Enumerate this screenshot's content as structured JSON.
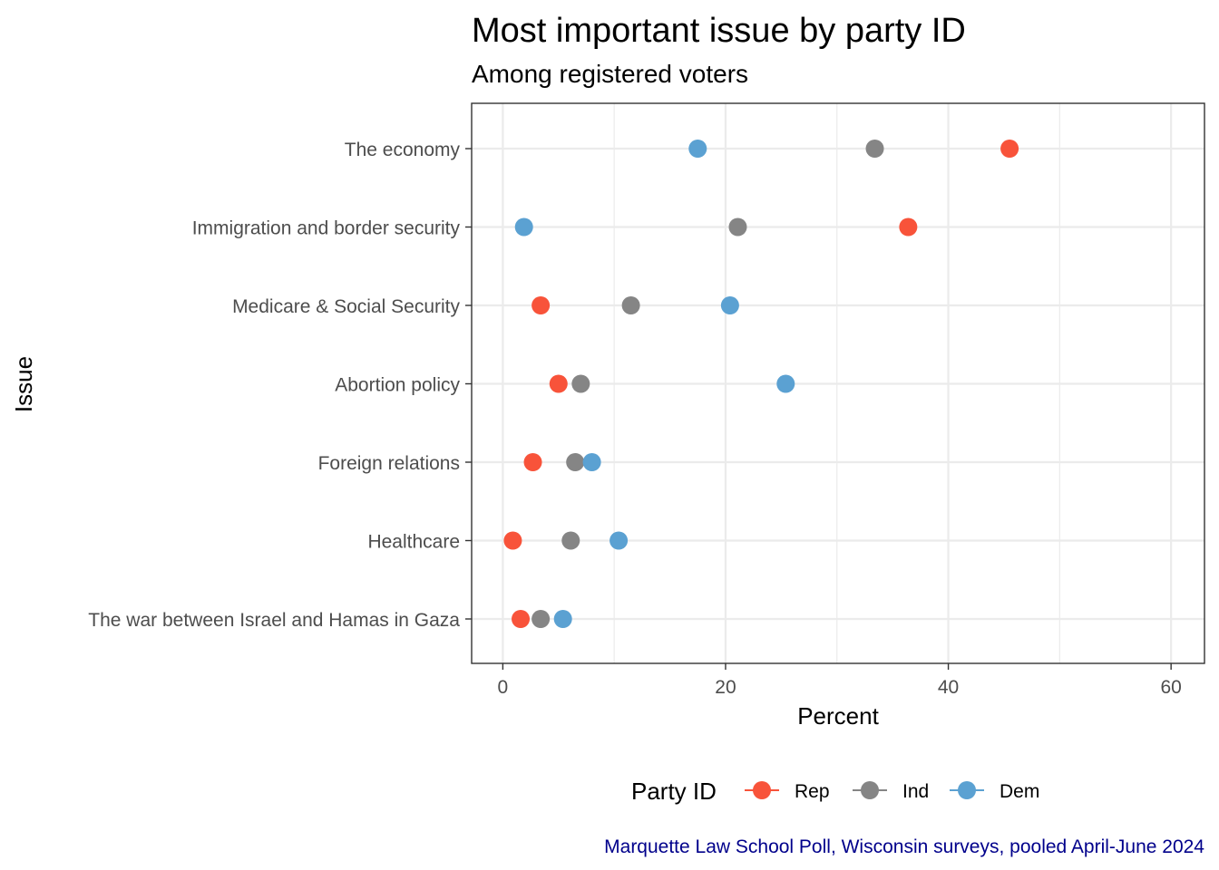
{
  "chart_data": {
    "type": "scatter",
    "title": "Most important issue by party ID",
    "subtitle": "Among registered voters",
    "xlabel": "Percent",
    "ylabel": "Issue",
    "xlim": [
      -2.8,
      63
    ],
    "xticks": [
      0,
      20,
      40,
      60
    ],
    "grid": true,
    "legend_position": "bottom",
    "legend_title": "Party ID",
    "caption": "Marquette Law School Poll, Wisconsin surveys, pooled April-June 2024",
    "categories": [
      "The economy",
      "Immigration and border security",
      "Medicare & Social Security",
      "Abortion policy",
      "Foreign relations",
      "Healthcare",
      "The war between Israel and Hamas in Gaza"
    ],
    "series": [
      {
        "name": "Rep",
        "color": "#f8533a",
        "values": [
          45.5,
          36.4,
          3.4,
          5.0,
          2.7,
          0.9,
          1.6
        ]
      },
      {
        "name": "Ind",
        "color": "#858585",
        "values": [
          33.4,
          21.1,
          11.5,
          7.0,
          6.5,
          6.1,
          3.4
        ]
      },
      {
        "name": "Dem",
        "color": "#5ba1d2",
        "values": [
          17.5,
          1.9,
          20.4,
          25.4,
          8.0,
          10.4,
          5.4
        ]
      }
    ]
  }
}
